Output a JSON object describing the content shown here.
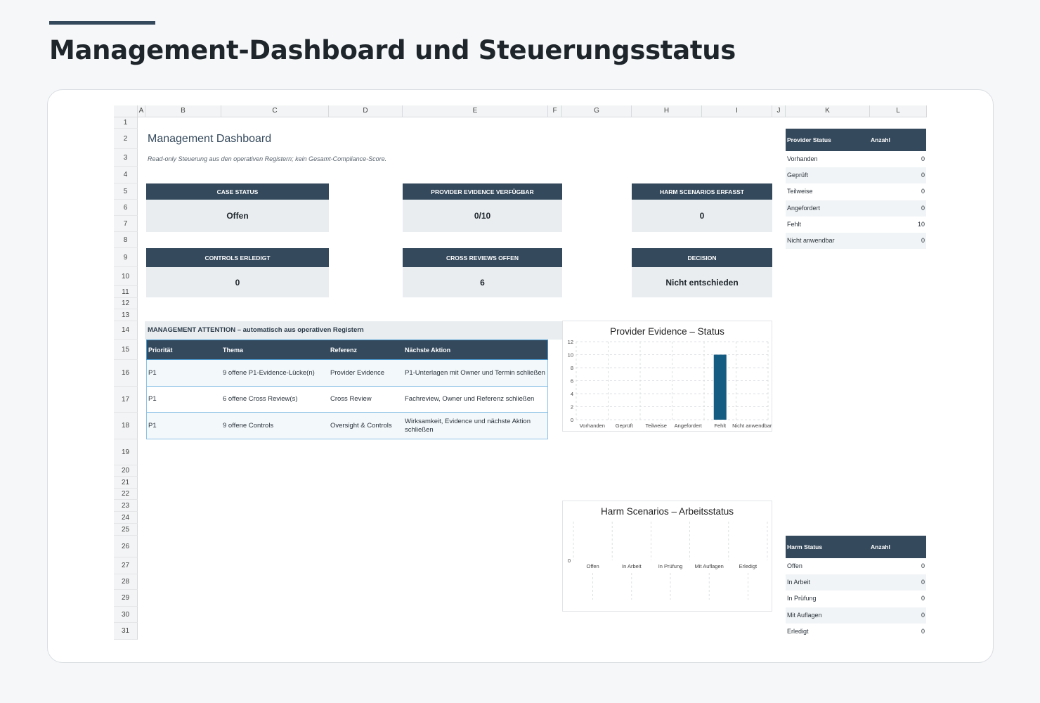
{
  "page": {
    "title": "Management-Dashboard und Steuerungsstatus"
  },
  "colors": {
    "header": "#34495c",
    "accent_bar": "#145c82",
    "kpi_fill": "#e9edf0"
  },
  "sheet": {
    "columns": [
      "A",
      "B",
      "C",
      "D",
      "E",
      "F",
      "G",
      "H",
      "I",
      "J",
      "K",
      "L"
    ],
    "rows": [
      "1",
      "2",
      "3",
      "4",
      "5",
      "6",
      "7",
      "8",
      "9",
      "10",
      "11",
      "12",
      "13",
      "14",
      "15",
      "16",
      "17",
      "18",
      "19",
      "20",
      "21",
      "22",
      "23",
      "24",
      "25",
      "26",
      "27",
      "28",
      "29",
      "30",
      "31"
    ]
  },
  "dashboard": {
    "title": "Management Dashboard",
    "subtitle": "Read-only Steuerung aus den operativen Registern; kein Gesamt-Compliance-Score.",
    "kpis": [
      {
        "label": "CASE STATUS",
        "value": "Offen"
      },
      {
        "label": "PROVIDER EVIDENCE VERFÜGBAR",
        "value": "0/10"
      },
      {
        "label": "HARM SCENARIOS ERFASST",
        "value": "0"
      },
      {
        "label": "CONTROLS ERLEDIGT",
        "value": "0"
      },
      {
        "label": "CROSS REVIEWS OFFEN",
        "value": "6"
      },
      {
        "label": "DECISION",
        "value": "Nicht entschieden"
      }
    ]
  },
  "attention": {
    "title": "MANAGEMENT ATTENTION – automatisch aus operativen Registern",
    "headers": [
      "Priorität",
      "Thema",
      "Referenz",
      "Nächste Aktion"
    ],
    "rows": [
      [
        "P1",
        "9 offene P1-Evidence-Lücke(n)",
        "Provider Evidence",
        "P1-Unterlagen mit Owner und Termin schließen"
      ],
      [
        "P1",
        "6 offene Cross Review(s)",
        "Cross Review",
        "Fachreview, Owner und Referenz schließen"
      ],
      [
        "P1",
        "9 offene Controls",
        "Oversight & Controls",
        "Wirksamkeit, Evidence und nächste Aktion schließen"
      ]
    ]
  },
  "provider_table": {
    "headers": [
      "Provider Status",
      "Anzahl"
    ],
    "rows": [
      [
        "Vorhanden",
        "0"
      ],
      [
        "Geprüft",
        "0"
      ],
      [
        "Teilweise",
        "0"
      ],
      [
        "Angefordert",
        "0"
      ],
      [
        "Fehlt",
        "10"
      ],
      [
        "Nicht anwendbar",
        "0"
      ]
    ]
  },
  "harm_table": {
    "headers": [
      "Harm Status",
      "Anzahl"
    ],
    "rows": [
      [
        "Offen",
        "0"
      ],
      [
        "In Arbeit",
        "0"
      ],
      [
        "In Prüfung",
        "0"
      ],
      [
        "Mit Auflagen",
        "0"
      ],
      [
        "Erledigt",
        "0"
      ]
    ]
  },
  "chart_data": [
    {
      "type": "bar",
      "title": "Provider Evidence – Status",
      "categories": [
        "Vorhanden",
        "Geprüft",
        "Teilweise",
        "Angefordert",
        "Fehlt",
        "Nicht anwendbar"
      ],
      "values": [
        0,
        0,
        0,
        0,
        10,
        0
      ],
      "ylim": [
        0,
        12
      ],
      "yticks": [
        "0",
        "2",
        "4",
        "6",
        "8",
        "10",
        "12"
      ],
      "grid": true
    },
    {
      "type": "bar",
      "title": "Harm Scenarios – Arbeitsstatus",
      "categories": [
        "Offen",
        "In Arbeit",
        "In Prüfung",
        "Mit Auflagen",
        "Erledigt"
      ],
      "values": [
        0,
        0,
        0,
        0,
        0
      ],
      "yticks": [
        "0"
      ],
      "grid": true
    }
  ]
}
